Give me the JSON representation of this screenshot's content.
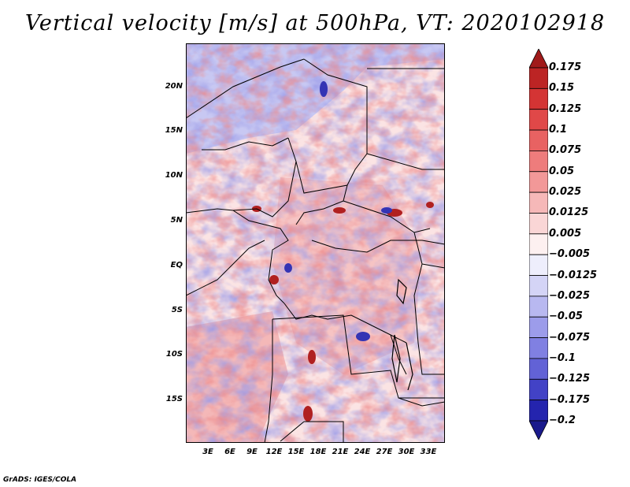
{
  "title": "Vertical velocity [m/s] at 500hPa, VT: 2020102918",
  "footer": "GrADS: IGES/COLA",
  "map": {
    "type": "shaded-field",
    "variable": "Vertical velocity",
    "units": "m/s",
    "level": "500hPa",
    "valid_time": "2020102918",
    "lon_range": [
      0,
      35
    ],
    "lat_range": [
      -20,
      25
    ],
    "lat_labels": [
      "20N",
      "15N",
      "10N",
      "5N",
      "EQ",
      "5S",
      "10S",
      "15S"
    ],
    "lon_labels": [
      "3E",
      "6E",
      "9E",
      "12E",
      "15E",
      "18E",
      "21E",
      "24E",
      "27E",
      "30E",
      "33E"
    ]
  },
  "colorbar": {
    "labels": [
      "0.175",
      "0.15",
      "0.125",
      "0.1",
      "0.075",
      "0.05",
      "0.025",
      "0.0125",
      "0.005",
      "−0.005",
      "−0.0125",
      "−0.025",
      "−0.05",
      "−0.075",
      "−0.1",
      "−0.125",
      "−0.175",
      "−0.2"
    ],
    "colors": [
      "#a01a1a",
      "#bc2424",
      "#d43434",
      "#e04848",
      "#e86262",
      "#ee7c7c",
      "#f29898",
      "#f6b8b8",
      "#fad6d6",
      "#fdf0f0",
      "#eeeefc",
      "#d4d4f6",
      "#b8b8f0",
      "#9c9cea",
      "#8080e2",
      "#6262d6",
      "#4242c6",
      "#2424ae",
      "#1a1a8c"
    ]
  }
}
